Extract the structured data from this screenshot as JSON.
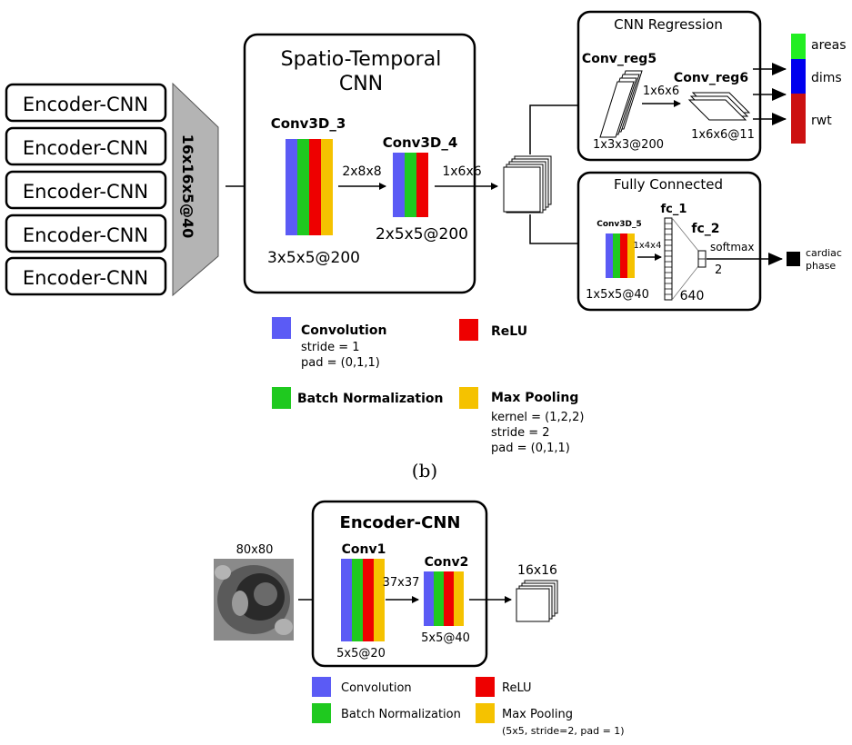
{
  "colors": {
    "convolution": "#5b5bf5",
    "batch_norm": "#1fc91f",
    "relu": "#ee0000",
    "max_pooling": "#f5c200",
    "funnel": "#b4b4b4",
    "areas": "#22ee22",
    "dims": "#0000ee",
    "rwt": "#cc1111",
    "phase": "#000000"
  },
  "panel_b": {
    "encoders": [
      "Encoder-CNN",
      "Encoder-CNN",
      "Encoder-CNN",
      "Encoder-CNN",
      "Encoder-CNN"
    ],
    "funnel_label": "16x16x5@40",
    "stcnn": {
      "title_line1": "Spatio-Temporal",
      "title_line2": "CNN",
      "conv3d_3": {
        "name": "Conv3D_3",
        "out": "3x5x5@200"
      },
      "link_a": "2x8x8",
      "conv3d_4": {
        "name": "Conv3D_4",
        "out": "2x5x5@200"
      }
    },
    "feature_link": "1x6x6",
    "cnn_regression": {
      "title": "CNN Regression",
      "conv_reg5": {
        "name": "Conv_reg5",
        "out": "1x3x3@200"
      },
      "link": "1x6x6",
      "conv_reg6": {
        "name": "Conv_reg6",
        "out": "1x6x6@11"
      },
      "outputs": [
        "areas",
        "dims",
        "rwt"
      ]
    },
    "fully_connected": {
      "title": "Fully Connected",
      "conv3d_5": {
        "name": "Conv3D_5",
        "out": "1x5x5@40"
      },
      "link": "1x4x4",
      "fc_1": {
        "name": "fc_1",
        "size": "640"
      },
      "fc_2": {
        "name": "fc_2",
        "act": "softmax",
        "size": "2"
      },
      "output_line1": "cardiac",
      "output_line2": "phase"
    },
    "legend": {
      "convolution": {
        "label": "Convolution",
        "line1": "stride = 1",
        "line2": "pad = (0,1,1)"
      },
      "relu": {
        "label": "ReLU"
      },
      "batch_norm": {
        "label": "Batch Normalization"
      },
      "max_pooling": {
        "label": "Max Pooling",
        "line1": "kernel = (1,2,2)",
        "line2": "stride = 2",
        "line3": "pad = (0,1,1)"
      }
    },
    "caption": "(b)"
  },
  "panel_c": {
    "input_size": "80x80",
    "title": "Encoder-CNN",
    "conv1": {
      "name": "Conv1",
      "out": "5x5@20"
    },
    "link": "37x37",
    "conv2": {
      "name": "Conv2",
      "out": "5x5@40"
    },
    "output_size": "16x16",
    "legend": {
      "convolution": "Convolution",
      "relu": "ReLU",
      "batch_norm": "Batch Normalization",
      "max_pooling": "Max Pooling",
      "max_pooling_params": "(5x5, stride=2, pad = 1)"
    }
  }
}
